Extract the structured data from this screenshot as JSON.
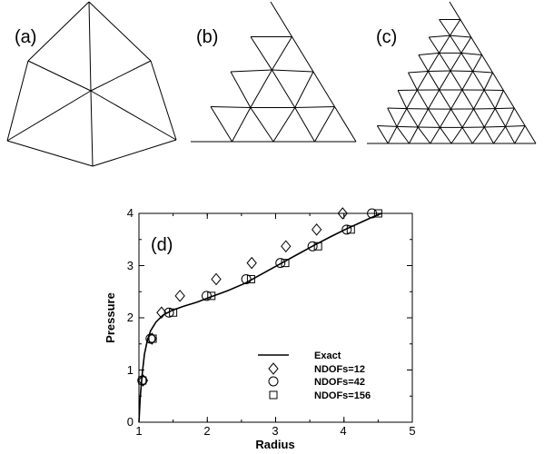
{
  "figure": {
    "panel_labels": [
      "(a)",
      "(b)",
      "(c)"
    ]
  },
  "chart_data": {
    "type": "scatter",
    "panel_label": "(d)",
    "xlabel": "Radius",
    "ylabel": "Pressure",
    "xlim": [
      1,
      5
    ],
    "ylim": [
      0,
      4
    ],
    "xticks": [
      1,
      2,
      3,
      4,
      5
    ],
    "yticks": [
      0,
      1,
      2,
      3,
      4
    ],
    "legend_position": "bottom-right",
    "series": [
      {
        "name": "Exact",
        "marker": "line",
        "x": [
          1.0,
          1.02,
          1.05,
          1.08,
          1.12,
          1.17,
          1.25,
          1.35,
          1.48,
          1.65,
          1.85,
          2.05,
          2.3,
          2.55,
          2.8,
          3.05,
          3.3,
          3.55,
          3.8,
          4.0,
          4.2,
          4.4,
          4.55
        ],
        "y": [
          0.0,
          0.5,
          0.95,
          1.3,
          1.55,
          1.75,
          1.92,
          2.05,
          2.14,
          2.22,
          2.3,
          2.4,
          2.52,
          2.66,
          2.84,
          3.02,
          3.2,
          3.38,
          3.55,
          3.68,
          3.8,
          3.92,
          4.0
        ]
      },
      {
        "name": "NDOFs=12",
        "marker": "diamond",
        "x": [
          1.06,
          1.19,
          1.33,
          1.6,
          2.13,
          2.65,
          3.15,
          3.6,
          3.98
        ],
        "y": [
          0.8,
          1.6,
          2.1,
          2.42,
          2.74,
          3.05,
          3.37,
          3.69,
          4.0
        ]
      },
      {
        "name": "NDOFs=42",
        "marker": "circle",
        "x": [
          1.05,
          1.17,
          1.44,
          1.99,
          2.57,
          3.07,
          3.54,
          4.04,
          4.41
        ],
        "y": [
          0.8,
          1.6,
          2.1,
          2.42,
          2.74,
          3.05,
          3.37,
          3.69,
          4.0
        ]
      },
      {
        "name": "NDOFs=156",
        "marker": "square",
        "x": [
          1.05,
          1.2,
          1.5,
          2.06,
          2.64,
          3.14,
          3.62,
          4.1,
          4.5
        ],
        "y": [
          0.8,
          1.6,
          2.1,
          2.42,
          2.74,
          3.05,
          3.37,
          3.69,
          4.0
        ]
      }
    ]
  }
}
